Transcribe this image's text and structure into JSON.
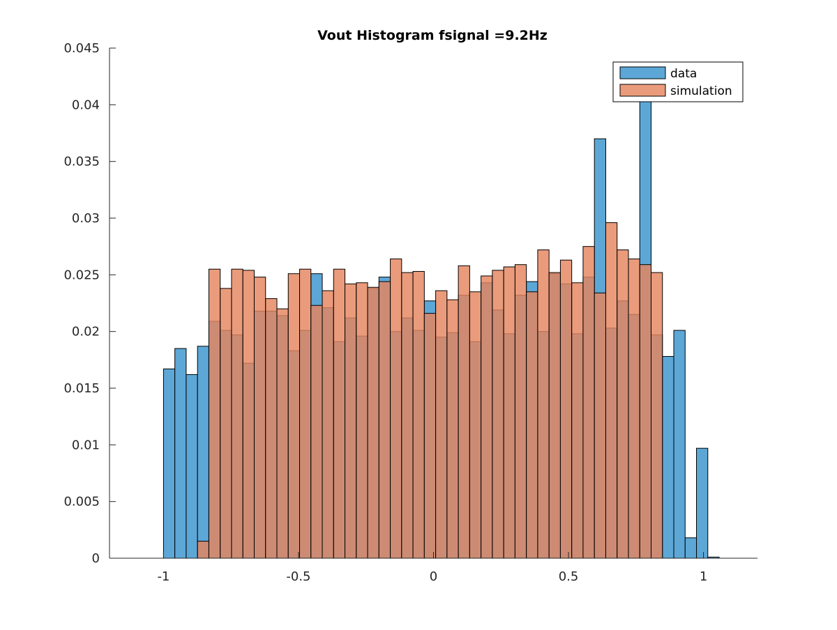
{
  "chart_data": {
    "type": "bar",
    "title": "Vout Histogram fsignal =9.2Hz",
    "xlabel": "",
    "ylabel": "",
    "xlim": [
      -1.2,
      1.2
    ],
    "ylim": [
      0,
      0.045
    ],
    "xticks": [
      -1,
      -0.5,
      0,
      0.5,
      1
    ],
    "xtick_labels": [
      "-1",
      "-0.5",
      "0",
      "0.5",
      "1"
    ],
    "yticks": [
      0,
      0.005,
      0.01,
      0.015,
      0.02,
      0.025,
      0.03,
      0.035,
      0.04,
      0.045
    ],
    "ytick_labels": [
      "0",
      "0.005",
      "0.01",
      "0.015",
      "0.02",
      "0.025",
      "0.03",
      "0.035",
      "0.04",
      "0.045"
    ],
    "bin_start": -1.0,
    "bin_width": 0.042,
    "grid": false,
    "legend_position": "top-right",
    "series": [
      {
        "name": "data",
        "color": "#5da7d7",
        "opacity": 1,
        "values": [
          0.0167,
          0.0185,
          0.0162,
          0.0187,
          0.0209,
          0.0201,
          0.0197,
          0.0172,
          0.0218,
          0.0218,
          0.0214,
          0.0183,
          0.0201,
          0.0251,
          0.0221,
          0.0191,
          0.0212,
          0.0196,
          0.0238,
          0.0248,
          0.02,
          0.0212,
          0.0201,
          0.0227,
          0.0195,
          0.0199,
          0.0232,
          0.0191,
          0.0243,
          0.0219,
          0.0198,
          0.0232,
          0.0244,
          0.02,
          0.0251,
          0.0242,
          0.0198,
          0.0248,
          0.037,
          0.0203,
          0.0227,
          0.0215,
          0.0408,
          0.0197,
          0.0178,
          0.0201,
          0.0018,
          0.0097,
          0.0001
        ]
      },
      {
        "name": "simulation",
        "color": "#e5855e",
        "opacity": 0.82,
        "values": [
          0,
          0,
          0,
          0.0015,
          0.0255,
          0.0238,
          0.0255,
          0.0254,
          0.0248,
          0.0229,
          0.022,
          0.0251,
          0.0255,
          0.0223,
          0.0236,
          0.0255,
          0.0242,
          0.0243,
          0.0239,
          0.0244,
          0.0264,
          0.0252,
          0.0253,
          0.0216,
          0.0236,
          0.0228,
          0.0258,
          0.0235,
          0.0249,
          0.0254,
          0.0257,
          0.0259,
          0.0235,
          0.0272,
          0.0252,
          0.0263,
          0.0243,
          0.0275,
          0.0234,
          0.0296,
          0.0272,
          0.0264,
          0.0259,
          0.0252,
          0,
          0,
          0,
          0,
          0
        ]
      }
    ]
  }
}
